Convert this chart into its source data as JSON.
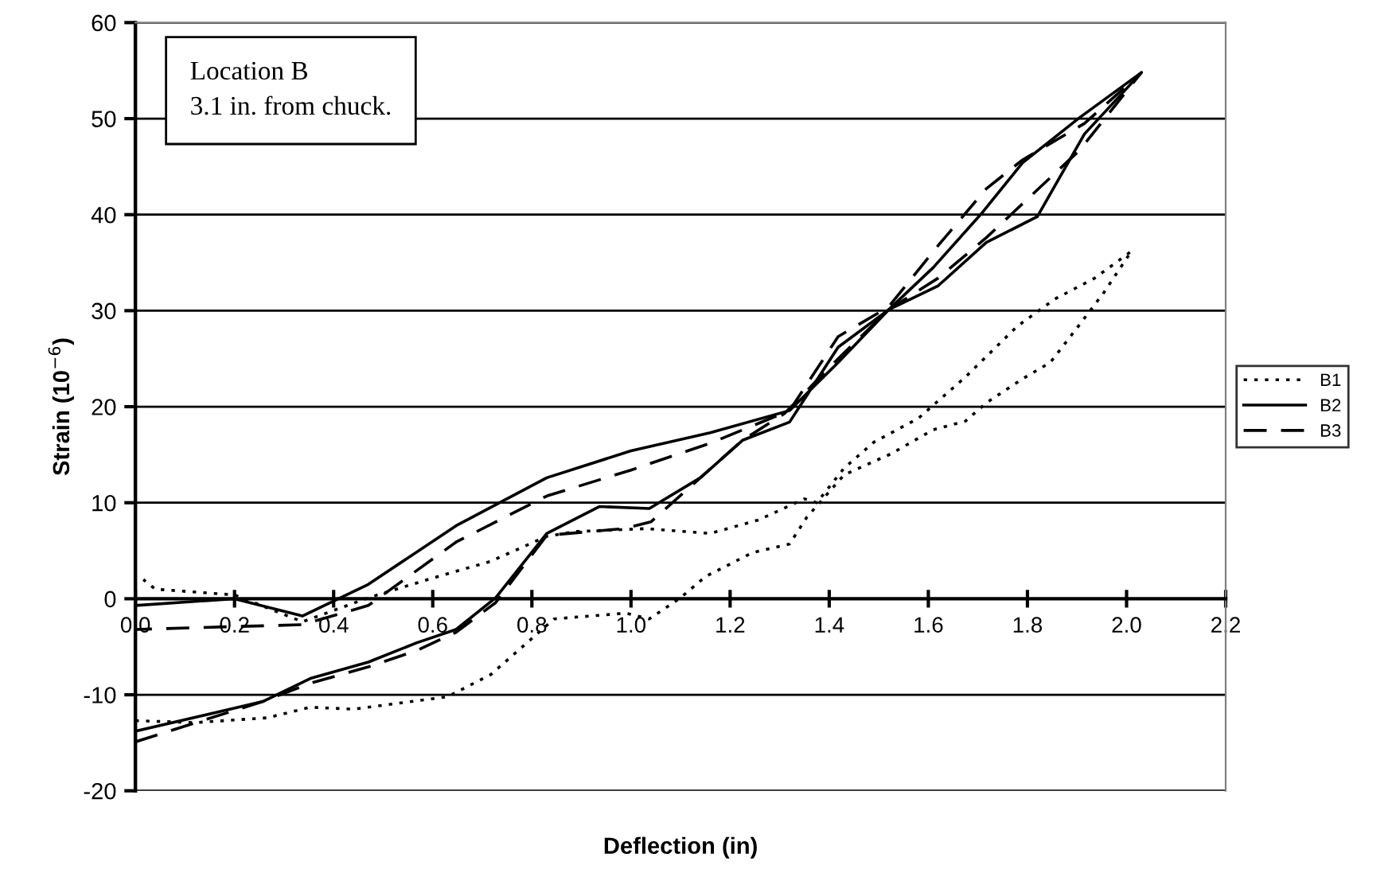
{
  "chart_data": {
    "type": "line",
    "xlabel": "Deflection (in)",
    "ylabel": "Strain (10$^{−6}$)",
    "annotations": [
      "Location B\n3.1 in. from chuck."
    ],
    "xlim": [
      0,
      2.2
    ],
    "xticks": [
      {
        "value": 0,
        "label": "0.0"
      },
      0.2,
      0.4,
      0.6,
      0.8,
      {
        "value": 1,
        "label": "1.0"
      },
      1.2,
      1.4,
      1.6,
      1.8,
      {
        "value": 2,
        "label": "2.0"
      },
      2.2
    ],
    "ylim": [
      -20,
      60
    ],
    "yticks": [
      -20,
      -10,
      0,
      10,
      20,
      30,
      40,
      50,
      60
    ],
    "grid": "y",
    "legend": "right",
    "marker": "none",
    "series": [
      {
        "name": "B1",
        "color": "#000000",
        "line_style": "dotted",
        "x": [
          0,
          0.12,
          0.266,
          0.353,
          0.44,
          0.63,
          0.717,
          0.845,
          0.99,
          1.037,
          1.1,
          1.15,
          1.245,
          1.32,
          1.355,
          1.43,
          1.525,
          1.61,
          1.675,
          1.717,
          1.79,
          1.846,
          1.9,
          1.953,
          2.01,
          1.936,
          1.855,
          1.78,
          1.675,
          1.58,
          1.49,
          1.43,
          1.375,
          1.35,
          1.257,
          1.16,
          1.03,
          0.89,
          0.83,
          0.717,
          0.59,
          0.47,
          0.337,
          0.2,
          0.04,
          0.016
        ],
        "values": [
          -12.7,
          -12.9,
          -12.4,
          -11.3,
          -11.5,
          -10.2,
          -7.9,
          -2.1,
          -1.5,
          -2.1,
          0.1,
          2.3,
          4.8,
          5.7,
          8.5,
          12.9,
          15.1,
          17.6,
          18.5,
          20.4,
          22.9,
          24.6,
          28.2,
          31.8,
          36.2,
          33.4,
          31.2,
          28.4,
          23.1,
          18.8,
          16.3,
          13.6,
          10.0,
          10.4,
          8.2,
          6.8,
          7.3,
          7.0,
          6.5,
          3.9,
          2.0,
          0.1,
          -2.4,
          0.4,
          1.0,
          2.0
        ]
      },
      {
        "name": "B2",
        "color": "#000000",
        "line_style": "solid",
        "x": [
          0,
          0.257,
          0.353,
          0.47,
          0.567,
          0.647,
          0.727,
          0.83,
          0.936,
          1.037,
          1.14,
          1.225,
          1.32,
          1.418,
          1.52,
          1.62,
          1.717,
          1.82,
          1.915,
          2.03,
          1.905,
          1.79,
          1.707,
          1.61,
          1.52,
          1.418,
          1.32,
          1.16,
          1.0,
          0.83,
          0.647,
          0.47,
          0.337,
          0.2,
          0
        ],
        "values": [
          -13.8,
          -10.7,
          -8.3,
          -6.6,
          -4.6,
          -3.2,
          0.1,
          6.8,
          9.6,
          9.4,
          12.6,
          16.5,
          18.4,
          26.2,
          30.1,
          32.6,
          37.1,
          39.8,
          48.4,
          54.8,
          50.1,
          45.4,
          40.1,
          34.5,
          30.1,
          24.6,
          19.6,
          17.3,
          15.4,
          12.6,
          7.6,
          1.5,
          -1.8,
          0.0,
          -0.7
        ]
      },
      {
        "name": "B3",
        "color": "#000000",
        "line_style": "dashed",
        "x": [
          0,
          0.257,
          0.353,
          0.47,
          0.567,
          0.647,
          0.727,
          0.83,
          0.985,
          1.04,
          1.14,
          1.225,
          1.31,
          1.418,
          1.52,
          1.62,
          1.717,
          1.905,
          2.03,
          1.915,
          1.79,
          1.717,
          1.62,
          1.52,
          1.418,
          1.32,
          1.16,
          1.0,
          0.83,
          0.647,
          0.47,
          0.337,
          0.2,
          0
        ],
        "values": [
          -14.9,
          -10.7,
          -8.8,
          -7.1,
          -5.4,
          -3.5,
          -0.4,
          6.6,
          7.3,
          8.0,
          12.6,
          16.5,
          19.3,
          25.0,
          30.1,
          33.4,
          37.6,
          46.7,
          54.8,
          49.5,
          45.7,
          42.7,
          36.8,
          30.4,
          27.3,
          19.6,
          16.2,
          13.4,
          10.7,
          5.9,
          -0.7,
          -2.7,
          -2.9,
          -3.2
        ]
      }
    ]
  }
}
